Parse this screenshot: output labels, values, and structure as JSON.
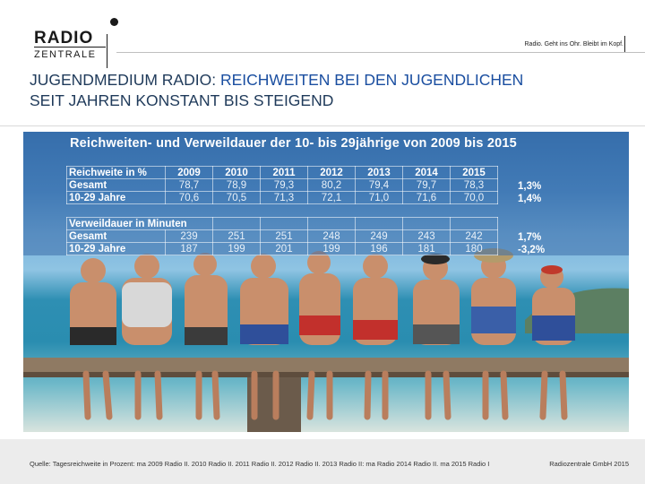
{
  "header": {
    "logo_top": "RADIO",
    "logo_bottom": "ZENTRALE",
    "slogan": "Radio. Geht ins Ohr. Bleibt im Kopf."
  },
  "title": {
    "prefix": "JUGENDMEDIUM RADIO: ",
    "highlight": "REICHWEITEN BEI DEN JUGENDLICHEN",
    "line2": "SEIT JAHREN KONSTANT BIS STEIGEND"
  },
  "chart": {
    "title": "Reichweiten- und Verweildauer der 10- bis 29jährige von 2009 bis 2015",
    "reach_header": "Reichweite in %",
    "years": [
      "2009",
      "2010",
      "2011",
      "2012",
      "2013",
      "2014",
      "2015"
    ],
    "reach_rows": [
      {
        "label": "Gesamt",
        "values": [
          "78,7",
          "78,9",
          "79,3",
          "80,2",
          "79,4",
          "79,7",
          "78,3"
        ],
        "delta": "1,3%"
      },
      {
        "label": "10-29 Jahre",
        "values": [
          "70,6",
          "70,5",
          "71,3",
          "72,1",
          "71,0",
          "71,6",
          "70,0"
        ],
        "delta": "1,4%"
      }
    ],
    "dwell_header": "Verweildauer in Minuten",
    "dwell_rows": [
      {
        "label": "Gesamt",
        "values": [
          "239",
          "251",
          "251",
          "248",
          "249",
          "243",
          "242"
        ],
        "delta": "1,7%"
      },
      {
        "label": "10-29 Jahre",
        "values": [
          "187",
          "199",
          "201",
          "199",
          "196",
          "181",
          "180"
        ],
        "delta": "-3,2%"
      }
    ]
  },
  "footer": {
    "source": "Quelle: Tagesreichweite in Prozent: ma 2009 Radio II. 2010 Radio II. 2011 Radio II. 2012 Radio II. 2013 Radio II: ma Radio 2014 Radio II. ma 2015 Radio I",
    "copyright": "Radiozentrale GmbH 2015"
  },
  "colors": {
    "title_dark": "#1f3a5a",
    "title_accent": "#1a4ea0",
    "footer_bg": "#ececec"
  }
}
